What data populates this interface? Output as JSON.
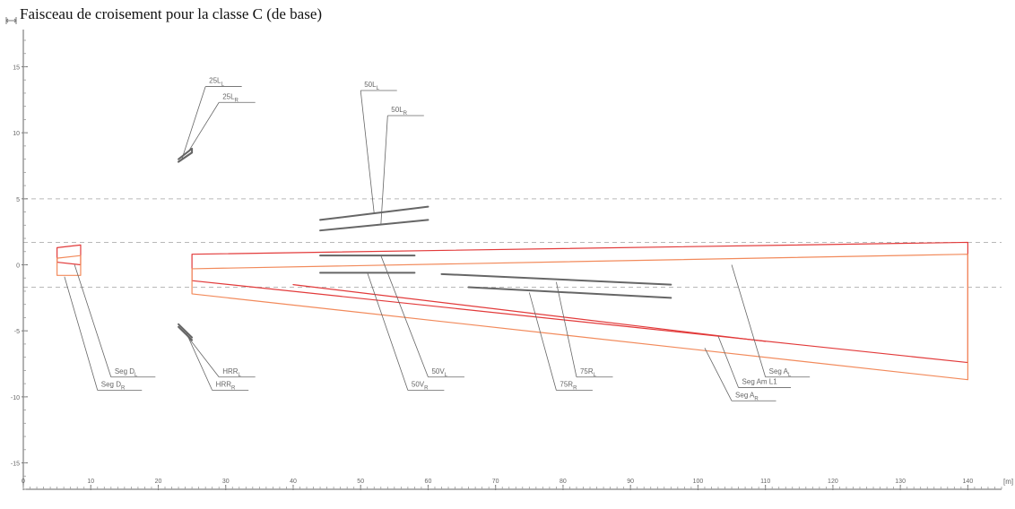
{
  "header": {
    "title": "Faisceau de croisement pour la classe C (de base)",
    "y_unit_icon": "vertical-unit-bracket-icon"
  },
  "chart_data": {
    "type": "line",
    "title": "Faisceau de croisement pour la classe C (de base)",
    "xlabel": "",
    "ylabel": "",
    "x_unit_label": "[m]",
    "x_ticks": [
      "0",
      "10",
      "20",
      "30",
      "40",
      "50",
      "60",
      "70",
      "80",
      "90",
      "100",
      "110",
      "120",
      "130",
      "140"
    ],
    "y_ticks": [
      "15",
      "10",
      "5",
      "0",
      "-5",
      "-10",
      "-15"
    ],
    "xlim": [
      0,
      145
    ],
    "ylim": [
      -17,
      17
    ],
    "colors": {
      "red_series": "#e23a3a",
      "orange_series": "#f28a5b",
      "gray_series": "#666666",
      "reference_lines": "#b8b8b8"
    },
    "reference_lines": [
      {
        "y": 5.0,
        "style": "dashed"
      },
      {
        "y": 1.7,
        "style": "dashed"
      },
      {
        "y": -1.7,
        "style": "dashed"
      }
    ],
    "series": [
      {
        "label": "Seg D_L",
        "color": "#e23a3a",
        "x": [
          5,
          8.5,
          8.5,
          5,
          5
        ],
        "y": [
          1.3,
          1.5,
          0,
          0.2,
          1.3
        ]
      },
      {
        "label": "Seg D_R",
        "color": "#f28a5b",
        "x": [
          5,
          8.5,
          8.5,
          5,
          5
        ],
        "y": [
          0.5,
          0.7,
          -0.8,
          -0.8,
          0.5
        ]
      },
      {
        "label": "Seg A_L",
        "color": "#e23a3a",
        "x": [
          25,
          140,
          140,
          25,
          25
        ],
        "y": [
          0.8,
          1.7,
          -7.4,
          -1.2,
          0.8
        ]
      },
      {
        "label": "Seg A_R",
        "color": "#f28a5b",
        "x": [
          25,
          140,
          140,
          25,
          25
        ],
        "y": [
          -0.3,
          0.8,
          -8.7,
          -2.2,
          -0.3
        ]
      },
      {
        "label": "Seg Am L1",
        "color": "#e23a3a",
        "x": [
          40,
          110
        ],
        "y": [
          -1.5,
          -5.8
        ]
      },
      {
        "label": "25L_L",
        "color": "#666666",
        "x": [
          23,
          25,
          25,
          23
        ],
        "y": [
          7.8,
          8.5,
          8.8,
          8.0
        ]
      },
      {
        "label": "25L_R",
        "color": "#666666",
        "x": [
          23,
          25
        ],
        "y": [
          7.8,
          8.5
        ]
      },
      {
        "label": "50L_L",
        "color": "#666666",
        "x": [
          44,
          60
        ],
        "y": [
          3.4,
          4.4
        ]
      },
      {
        "label": "50L_R",
        "color": "#666666",
        "x": [
          44,
          60
        ],
        "y": [
          2.6,
          3.4
        ]
      },
      {
        "label": "50V_L",
        "color": "#666666",
        "x": [
          44,
          58
        ],
        "y": [
          0.7,
          0.7
        ]
      },
      {
        "label": "50V_R",
        "color": "#666666",
        "x": [
          44,
          58
        ],
        "y": [
          -0.6,
          -0.6
        ]
      },
      {
        "label": "75R_L",
        "color": "#666666",
        "x": [
          62,
          96
        ],
        "y": [
          -0.7,
          -1.5
        ]
      },
      {
        "label": "75R_R",
        "color": "#666666",
        "x": [
          66,
          96
        ],
        "y": [
          -1.7,
          -2.5
        ]
      },
      {
        "label": "HRR_L",
        "color": "#666666",
        "x": [
          23,
          25
        ],
        "y": [
          -4.5,
          -5.5
        ]
      },
      {
        "label": "HRR_R",
        "color": "#666666",
        "x": [
          23,
          25
        ],
        "y": [
          -4.7,
          -5.7
        ]
      }
    ],
    "annotations": [
      {
        "label": "25L_L",
        "target_x": 23.5,
        "target_y": 8.0,
        "label_x": 27,
        "label_y": 13.5
      },
      {
        "label": "25L_R",
        "target_x": 24.5,
        "target_y": 8.6,
        "label_x": 29,
        "label_y": 12.3
      },
      {
        "label": "50L_L",
        "target_x": 52,
        "target_y": 3.9,
        "label_x": 50,
        "label_y": 13.2
      },
      {
        "label": "50L_R",
        "target_x": 53,
        "target_y": 3.0,
        "label_x": 54,
        "label_y": 11.3
      },
      {
        "label": "Seg D_L",
        "target_x": 7.6,
        "target_y": 0.0,
        "label_x": 13,
        "label_y": -8.5
      },
      {
        "label": "Seg D_R",
        "target_x": 6.1,
        "target_y": -0.9,
        "label_x": 11,
        "label_y": -9.5
      },
      {
        "label": "HRR_L",
        "target_x": 23.7,
        "target_y": -5.0,
        "label_x": 29,
        "label_y": -8.5
      },
      {
        "label": "HRR_R",
        "target_x": 24.2,
        "target_y": -5.2,
        "label_x": 28,
        "label_y": -9.5
      },
      {
        "label": "50V_L",
        "target_x": 53,
        "target_y": 0.7,
        "label_x": 60,
        "label_y": -8.5
      },
      {
        "label": "50V_R",
        "target_x": 51,
        "target_y": -0.6,
        "label_x": 57,
        "label_y": -9.5
      },
      {
        "label": "75R_L",
        "target_x": 79,
        "target_y": -1.3,
        "label_x": 82,
        "label_y": -8.5
      },
      {
        "label": "75R_R",
        "target_x": 75,
        "target_y": -2.1,
        "label_x": 79,
        "label_y": -9.5
      },
      {
        "label": "Seg A_L",
        "target_x": 105,
        "target_y": 0.0,
        "label_x": 110,
        "label_y": -8.5
      },
      {
        "label": "Seg Am L1",
        "target_x": 103,
        "target_y": -5.4,
        "label_x": 106,
        "label_y": -9.3
      },
      {
        "label": "Seg A_R",
        "target_x": 101,
        "target_y": -6.3,
        "label_x": 105,
        "label_y": -10.3
      }
    ]
  }
}
